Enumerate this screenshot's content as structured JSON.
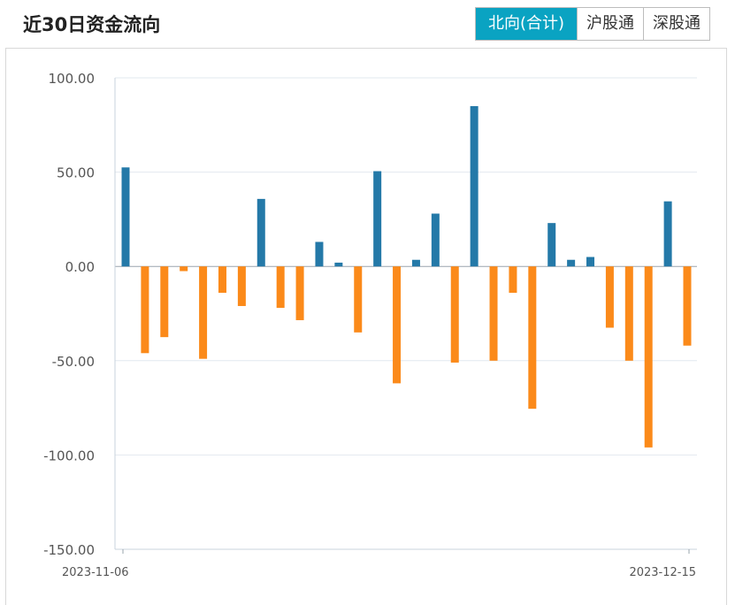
{
  "header": {
    "title": "近30日资金流向",
    "tabs": [
      {
        "label": "北向(合计)",
        "active": true
      },
      {
        "label": "沪股通",
        "active": false
      },
      {
        "label": "深股通",
        "active": false
      }
    ]
  },
  "colors": {
    "positive": "#2479a8",
    "negative": "#fb8a1a",
    "active_tab": "#0aa3c2",
    "grid": "#e2e8ef"
  },
  "chart_data": {
    "type": "bar",
    "title": "",
    "xlabel": "",
    "ylabel": "",
    "ylim": [
      -150,
      100
    ],
    "yticks": [
      "100.00",
      "50.00",
      "0.00",
      "-50.00",
      "-100.00",
      "-150.00"
    ],
    "x_tick_labels": [
      "2023-11-06",
      "2023-12-15"
    ],
    "grid": true,
    "values": [
      52.5,
      -46.0,
      -37.5,
      -2.5,
      -49.0,
      -14.0,
      -21.0,
      35.8,
      -22.0,
      -28.5,
      13.0,
      2.0,
      -35.0,
      50.5,
      -62.0,
      3.5,
      28.0,
      -51.0,
      85.0,
      -50.0,
      -14.0,
      -75.5,
      23.0,
      3.5,
      5.0,
      -32.5,
      -50.0,
      -96.0,
      34.5,
      -42.0
    ]
  }
}
